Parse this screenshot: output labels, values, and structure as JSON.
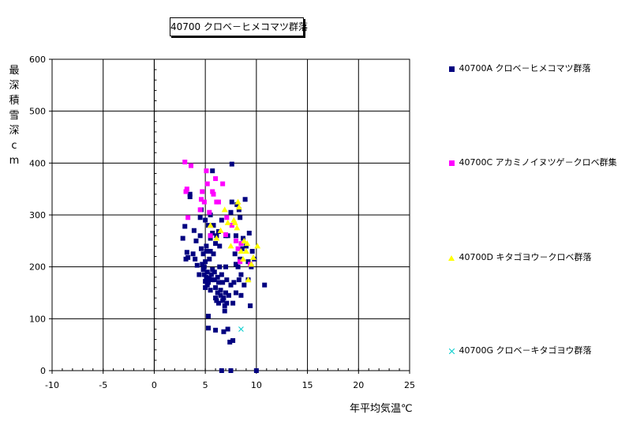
{
  "chart_data": {
    "type": "scatter",
    "title": "40700 クロベ－ヒメコマツ群落",
    "xlabel": "年平均気温℃",
    "ylabel": "最深積雪深cm",
    "xlim": [
      -10,
      25
    ],
    "ylim": [
      0,
      600
    ],
    "x_ticks": [
      -10,
      -5,
      0,
      5,
      10,
      15,
      20,
      25
    ],
    "y_ticks": [
      0,
      100,
      200,
      300,
      400,
      500,
      600
    ],
    "x_tick_labels": [
      "-10",
      "-5",
      "0",
      "5",
      "10",
      "15",
      "20",
      "25"
    ],
    "y_tick_labels": [
      "0",
      "100",
      "200",
      "300",
      "400",
      "500",
      "600"
    ],
    "grid": true,
    "legend_position": "right",
    "series": [
      {
        "name": "40700A クロベ－ヒメコマツ群落",
        "color": "#000080",
        "marker": "square",
        "points": [
          [
            2.8,
            255
          ],
          [
            3.0,
            278
          ],
          [
            3.1,
            215
          ],
          [
            3.2,
            228
          ],
          [
            3.3,
            218
          ],
          [
            3.5,
            335
          ],
          [
            3.5,
            340
          ],
          [
            3.8,
            225
          ],
          [
            3.9,
            270
          ],
          [
            4.0,
            215
          ],
          [
            4.1,
            250
          ],
          [
            4.2,
            203
          ],
          [
            4.4,
            185
          ],
          [
            4.5,
            260
          ],
          [
            4.5,
            295
          ],
          [
            4.6,
            310
          ],
          [
            4.6,
            235
          ],
          [
            4.7,
            205
          ],
          [
            4.8,
            195
          ],
          [
            4.8,
            225
          ],
          [
            4.9,
            200
          ],
          [
            4.9,
            185
          ],
          [
            5.0,
            172
          ],
          [
            5.0,
            160
          ],
          [
            5.0,
            210
          ],
          [
            5.0,
            290
          ],
          [
            5.1,
            180
          ],
          [
            5.1,
            230
          ],
          [
            5.1,
            240
          ],
          [
            5.2,
            165
          ],
          [
            5.2,
            190
          ],
          [
            5.3,
            280
          ],
          [
            5.3,
            105
          ],
          [
            5.3,
            82
          ],
          [
            5.3,
            170
          ],
          [
            5.4,
            215
          ],
          [
            5.4,
            178
          ],
          [
            5.5,
            300
          ],
          [
            5.5,
            260
          ],
          [
            5.5,
            255
          ],
          [
            5.5,
            230
          ],
          [
            5.5,
            155
          ],
          [
            5.6,
            175
          ],
          [
            5.6,
            185
          ],
          [
            5.7,
            265
          ],
          [
            5.7,
            195
          ],
          [
            5.7,
            385
          ],
          [
            5.8,
            280
          ],
          [
            5.8,
            225
          ],
          [
            5.9,
            175
          ],
          [
            5.9,
            190
          ],
          [
            6.0,
            160
          ],
          [
            6.0,
            140
          ],
          [
            6.0,
            245
          ],
          [
            6.0,
            78
          ],
          [
            6.1,
            260
          ],
          [
            6.1,
            135
          ],
          [
            6.2,
            180
          ],
          [
            6.2,
            150
          ],
          [
            6.3,
            170
          ],
          [
            6.3,
            130
          ],
          [
            6.3,
            268
          ],
          [
            6.4,
            240
          ],
          [
            6.4,
            200
          ],
          [
            6.5,
            145
          ],
          [
            6.5,
            155
          ],
          [
            6.6,
            290
          ],
          [
            6.6,
            185
          ],
          [
            6.6,
            0
          ],
          [
            6.7,
            170
          ],
          [
            6.7,
            135
          ],
          [
            6.8,
            140
          ],
          [
            6.8,
            75
          ],
          [
            6.9,
            115
          ],
          [
            6.9,
            125
          ],
          [
            7.0,
            260
          ],
          [
            7.0,
            200
          ],
          [
            7.0,
            150
          ],
          [
            7.1,
            175
          ],
          [
            7.1,
            130
          ],
          [
            7.2,
            80
          ],
          [
            7.2,
            260
          ],
          [
            7.3,
            145
          ],
          [
            7.4,
            55
          ],
          [
            7.5,
            0
          ],
          [
            7.5,
            165
          ],
          [
            7.5,
            305
          ],
          [
            7.6,
            325
          ],
          [
            7.6,
            398
          ],
          [
            7.7,
            58
          ],
          [
            7.7,
            130
          ],
          [
            7.8,
            170
          ],
          [
            7.9,
            225
          ],
          [
            8.0,
            205
          ],
          [
            8.0,
            260
          ],
          [
            8.0,
            150
          ],
          [
            8.1,
            320
          ],
          [
            8.2,
            200
          ],
          [
            8.3,
            310
          ],
          [
            8.3,
            175
          ],
          [
            8.4,
            295
          ],
          [
            8.4,
            215
          ],
          [
            8.5,
            185
          ],
          [
            8.5,
            145
          ],
          [
            8.6,
            235
          ],
          [
            8.7,
            255
          ],
          [
            8.8,
            165
          ],
          [
            8.9,
            330
          ],
          [
            9.0,
            240
          ],
          [
            9.2,
            175
          ],
          [
            9.2,
            210
          ],
          [
            9.3,
            265
          ],
          [
            9.4,
            125
          ],
          [
            9.5,
            200
          ],
          [
            9.6,
            230
          ],
          [
            9.8,
            215
          ],
          [
            10.0,
            0
          ],
          [
            10.8,
            165
          ]
        ]
      },
      {
        "name": "40700C アカミノイヌツゲ－クロベ群集",
        "color": "#ff00ff",
        "marker": "square",
        "points": [
          [
            3.0,
            402
          ],
          [
            3.1,
            345
          ],
          [
            3.2,
            350
          ],
          [
            3.3,
            295
          ],
          [
            3.6,
            395
          ],
          [
            4.5,
            310
          ],
          [
            4.6,
            330
          ],
          [
            4.7,
            345
          ],
          [
            4.9,
            325
          ],
          [
            5.1,
            385
          ],
          [
            5.2,
            360
          ],
          [
            5.4,
            305
          ],
          [
            5.5,
            260
          ],
          [
            5.7,
            345
          ],
          [
            5.8,
            340
          ],
          [
            6.0,
            370
          ],
          [
            6.1,
            325
          ],
          [
            6.3,
            325
          ],
          [
            6.7,
            360
          ],
          [
            7.0,
            262
          ],
          [
            7.1,
            295
          ],
          [
            7.6,
            280
          ],
          [
            8.0,
            250
          ],
          [
            8.2,
            235
          ],
          [
            8.4,
            210
          ],
          [
            8.5,
            245
          ],
          [
            9.4,
            205
          ]
        ]
      },
      {
        "name": "40700D キタゴヨウ－クロベ群落",
        "color": "#ffff00",
        "marker": "triangle",
        "points": [
          [
            5.5,
            280
          ],
          [
            6.1,
            255
          ],
          [
            6.5,
            270
          ],
          [
            6.9,
            310
          ],
          [
            7.2,
            285
          ],
          [
            7.5,
            240
          ],
          [
            7.8,
            290
          ],
          [
            7.9,
            285
          ],
          [
            8.1,
            275
          ],
          [
            8.2,
            325
          ],
          [
            8.3,
            315
          ],
          [
            8.5,
            230
          ],
          [
            8.7,
            215
          ],
          [
            8.8,
            250
          ],
          [
            9.0,
            230
          ],
          [
            9.1,
            245
          ],
          [
            9.2,
            175
          ],
          [
            9.5,
            205
          ],
          [
            9.7,
            218
          ],
          [
            10.1,
            240
          ]
        ]
      },
      {
        "name": "40700G クロベ－キタゴヨウ群落",
        "color": "#00cccc",
        "marker": "x",
        "points": [
          [
            8.5,
            80
          ]
        ]
      }
    ]
  }
}
